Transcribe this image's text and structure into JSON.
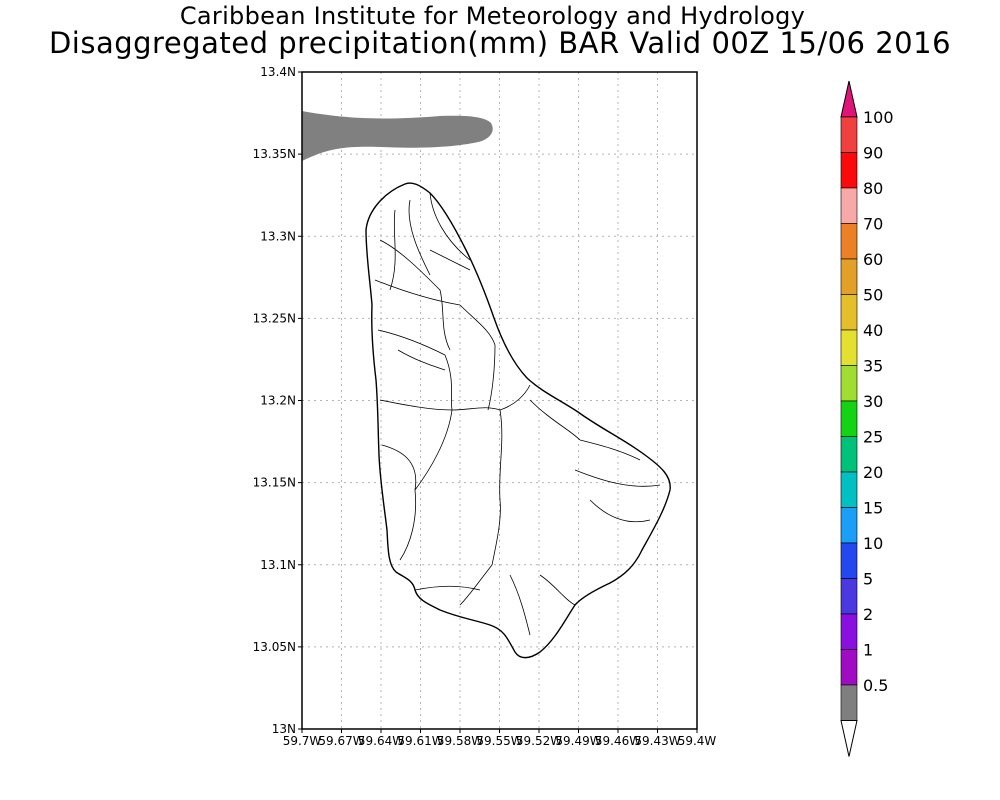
{
  "title_line1": "Caribbean Institute for Meteorology and Hydrology",
  "title_line2": "Disaggregated precipitation(mm) BAR Valid 00Z 15/06 2016",
  "map": {
    "lon_range": [
      -59.7,
      -59.4
    ],
    "lat_range": [
      13.0,
      13.4
    ],
    "grid": true,
    "lat_ticks": [
      {
        "value": 13.4,
        "label": "13.4N"
      },
      {
        "value": 13.35,
        "label": "13.35N"
      },
      {
        "value": 13.3,
        "label": "13.3N"
      },
      {
        "value": 13.25,
        "label": "13.25N"
      },
      {
        "value": 13.2,
        "label": "13.2N"
      },
      {
        "value": 13.15,
        "label": "13.15N"
      },
      {
        "value": 13.1,
        "label": "13.1N"
      },
      {
        "value": 13.05,
        "label": "13.05N"
      },
      {
        "value": 13.0,
        "label": "13N"
      }
    ],
    "lon_ticks": [
      {
        "value": -59.7,
        "label": "59.7W"
      },
      {
        "value": -59.67,
        "label": "59.67W"
      },
      {
        "value": -59.64,
        "label": "59.64W"
      },
      {
        "value": -59.61,
        "label": "59.61W"
      },
      {
        "value": -59.58,
        "label": "59.58W"
      },
      {
        "value": -59.55,
        "label": "59.55W"
      },
      {
        "value": -59.52,
        "label": "59.52W"
      },
      {
        "value": -59.49,
        "label": "59.49W"
      },
      {
        "value": -59.46,
        "label": "59.46W"
      },
      {
        "value": -59.43,
        "label": "59.43W"
      },
      {
        "value": -59.4,
        "label": "59.4W"
      }
    ],
    "precip_region_color": "#808080",
    "precip_region_class": "1"
  },
  "colorbar": {
    "levels": [
      {
        "label": "100",
        "color": "#f04040"
      },
      {
        "label": "90",
        "color": "#fa0a0a"
      },
      {
        "label": "80",
        "color": "#f7a9a9"
      },
      {
        "label": "70",
        "color": "#ec8026"
      },
      {
        "label": "60",
        "color": "#e2a028"
      },
      {
        "label": "50",
        "color": "#e5bf2b"
      },
      {
        "label": "40",
        "color": "#e4e032"
      },
      {
        "label": "35",
        "color": "#a0dc32"
      },
      {
        "label": "30",
        "color": "#14d214"
      },
      {
        "label": "25",
        "color": "#00c27a"
      },
      {
        "label": "20",
        "color": "#00c0c2"
      },
      {
        "label": "15",
        "color": "#1b9ef5"
      },
      {
        "label": "10",
        "color": "#2448f0"
      },
      {
        "label": "5",
        "color": "#4a38e0"
      },
      {
        "label": "2",
        "color": "#8a10e0"
      },
      {
        "label": "1",
        "color": "#a00cc2"
      },
      {
        "label": "0.5",
        "color": "#7f7f7f"
      }
    ],
    "top_triangle_color": "#e1147a",
    "bottom_triangle_color": "#ffffff"
  }
}
